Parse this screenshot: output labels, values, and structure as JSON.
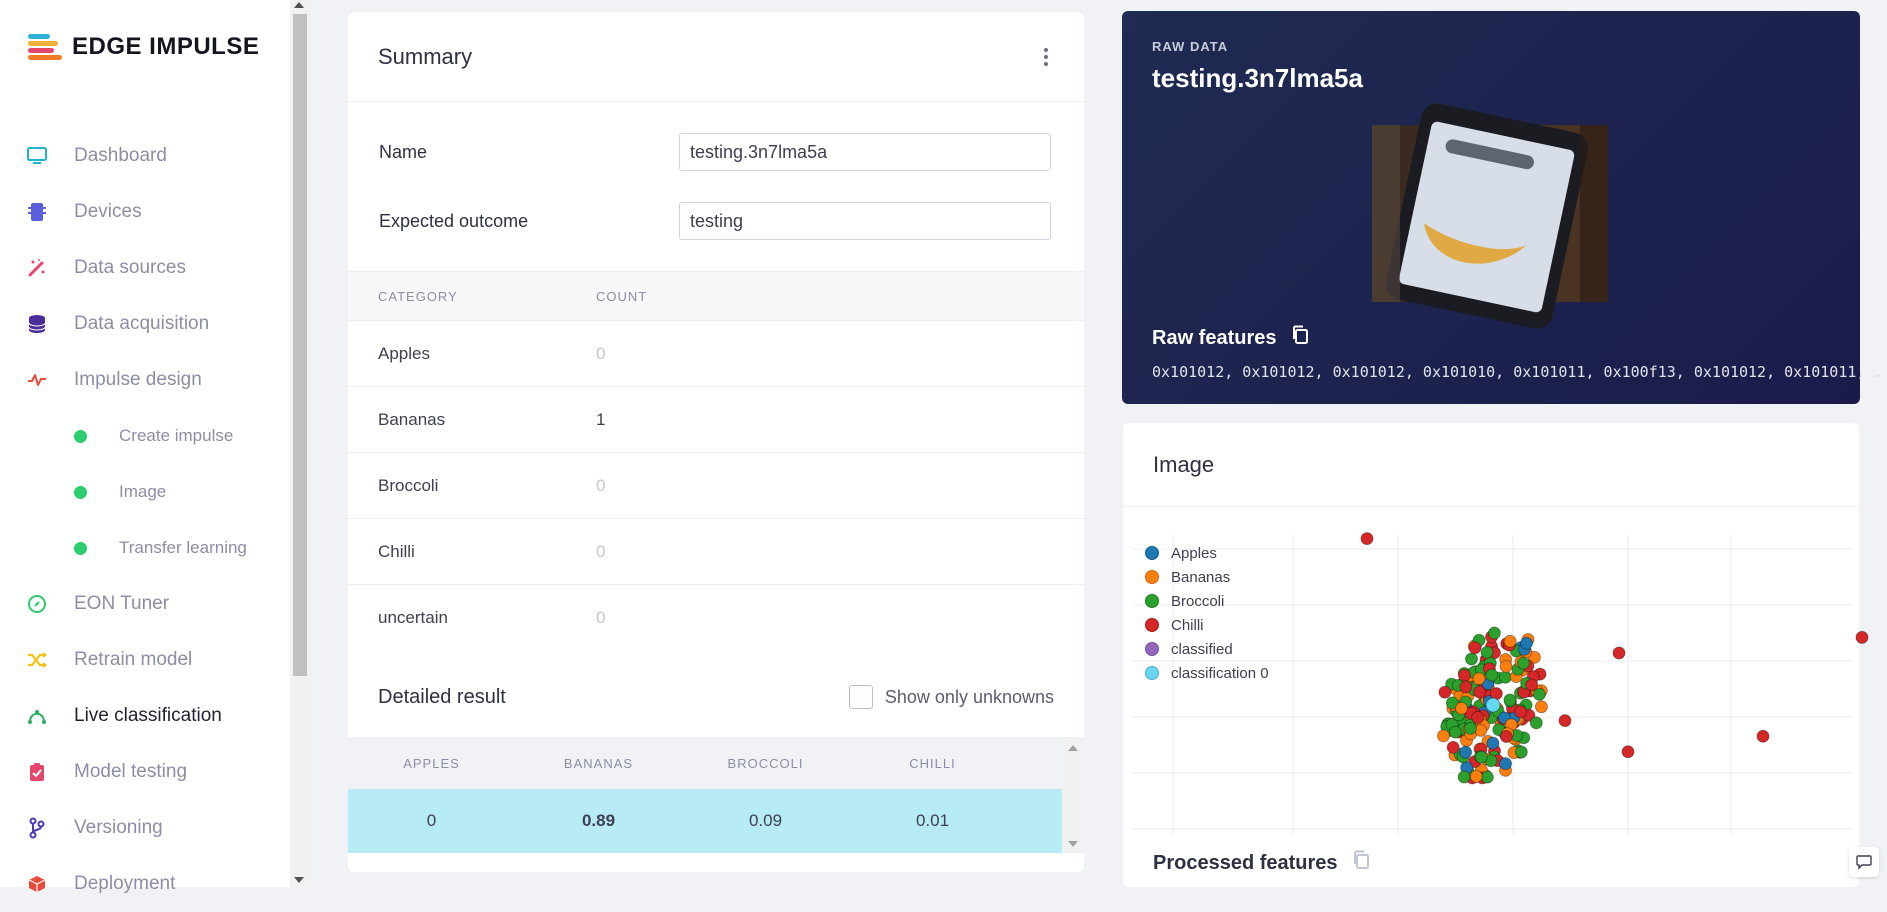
{
  "app": {
    "logo_text": "EDGE IMPULSE"
  },
  "sidebar": {
    "items": [
      {
        "label": "Dashboard",
        "icon": "monitor-icon",
        "color": "#1fb5c8"
      },
      {
        "label": "Devices",
        "icon": "chip-icon",
        "color": "#5b5fdb"
      },
      {
        "label": "Data sources",
        "icon": "magic-wand-icon",
        "color": "#e8456b"
      },
      {
        "label": "Data acquisition",
        "icon": "database-icon",
        "color": "#4a2c9a"
      },
      {
        "label": "Impulse design",
        "icon": "pulse-icon",
        "color": "#e84a3c"
      },
      {
        "label": "EON Tuner",
        "icon": "compass-icon",
        "color": "#2ecc71"
      },
      {
        "label": "Retrain model",
        "icon": "shuffle-icon",
        "color": "#f1c40f"
      },
      {
        "label": "Live classification",
        "icon": "bezier-icon",
        "color": "#27ae60"
      },
      {
        "label": "Model testing",
        "icon": "clipboard-check-icon",
        "color": "#e8456b"
      },
      {
        "label": "Versioning",
        "icon": "branch-icon",
        "color": "#4a3cb8"
      },
      {
        "label": "Deployment",
        "icon": "box-icon",
        "color": "#e84a3c"
      }
    ],
    "subitems": [
      {
        "label": "Create impulse"
      },
      {
        "label": "Image"
      },
      {
        "label": "Transfer learning"
      }
    ]
  },
  "summary": {
    "title": "Summary",
    "name_label": "Name",
    "name_value": "testing.3n7lma5a",
    "expected_label": "Expected outcome",
    "expected_value": "testing",
    "table_headers": {
      "category": "CATEGORY",
      "count": "COUNT"
    },
    "rows": [
      {
        "category": "Apples",
        "count": "0"
      },
      {
        "category": "Bananas",
        "count": "1"
      },
      {
        "category": "Broccoli",
        "count": "0"
      },
      {
        "category": "Chilli",
        "count": "0"
      },
      {
        "category": "uncertain",
        "count": "0"
      }
    ],
    "detailed_title": "Detailed result",
    "show_unknowns_label": "Show only unknowns",
    "result_headers": [
      "APPLES",
      "BANANAS",
      "BROCCOLI",
      "CHILLI"
    ],
    "result_row": [
      "0",
      "0.89",
      "0.09",
      "0.01"
    ]
  },
  "raw": {
    "label": "RAW DATA",
    "title": "testing.3n7lma5a",
    "features_title": "Raw features",
    "features_values": "0x101012, 0x101012, 0x101012, 0x101010, 0x101011, 0x100f13, 0x101012, 0x101011, …"
  },
  "image_card": {
    "title": "Image",
    "processed_title": "Processed features"
  },
  "chart_data": {
    "type": "scatter",
    "legend": [
      {
        "name": "Apples",
        "color": "#1f77b4"
      },
      {
        "name": "Bananas",
        "color": "#ff7f0e"
      },
      {
        "name": "Broccoli",
        "color": "#2ca02c"
      },
      {
        "name": "Chilli",
        "color": "#d62728"
      },
      {
        "name": "classified",
        "color": "#9467bd"
      },
      {
        "name": "classification 0",
        "color": "#64d8f0"
      }
    ],
    "legend_position": "top-left",
    "grid": true,
    "outliers_chilli": [
      [
        -1.4,
        3.2
      ],
      [
        4.1,
        1.3
      ],
      [
        1.4,
        1.0
      ],
      [
        3.0,
        -0.6
      ],
      [
        0.8,
        -0.3
      ],
      [
        1.5,
        -0.9
      ],
      [
        -0.2,
        1.1
      ]
    ],
    "classified_point": [
      0.0,
      0.0
    ]
  }
}
